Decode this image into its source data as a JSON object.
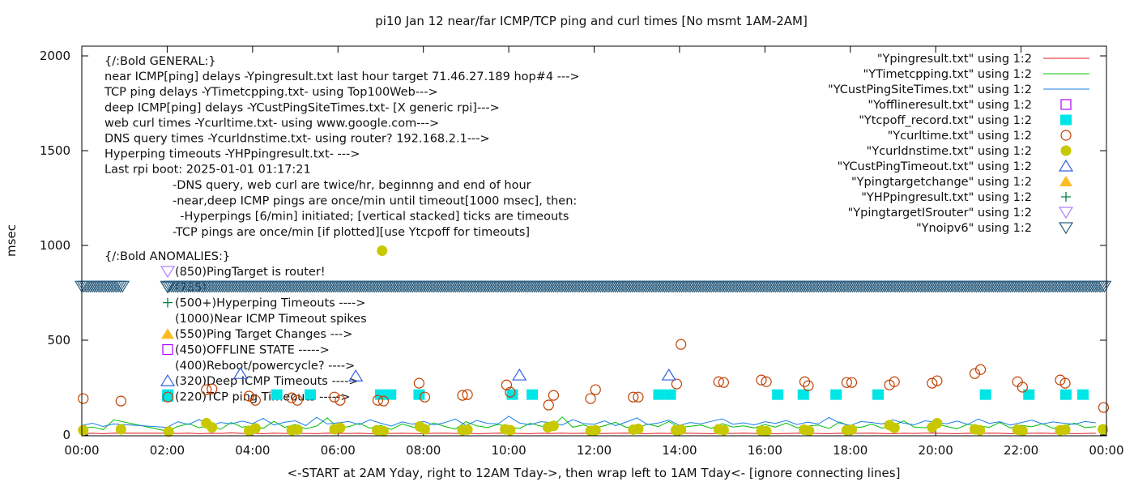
{
  "chart_data": {
    "type": "line",
    "title": "pi10 Jan 12  near/far ICMP/TCP ping and curl times [No msmt 1AM-2AM]",
    "xlabel": "<-START at 2AM Yday, right to 12AM Tday->, then wrap left to 1AM Tday<- [ignore connecting lines]",
    "ylabel": "msec",
    "xlim": [
      "00:00",
      "24:00"
    ],
    "ylim": [
      0,
      2040
    ],
    "x_ticks": [
      "00:00",
      "02:00",
      "04:00",
      "06:00",
      "08:00",
      "10:00",
      "12:00",
      "14:00",
      "16:00",
      "18:00",
      "20:00",
      "22:00",
      "00:00"
    ],
    "y_ticks": [
      0,
      500,
      1000,
      1500,
      2000
    ],
    "grid": false,
    "legend_position": "top-right",
    "series": [
      {
        "name": "\"Ypingresult.txt\" using 1:2",
        "kind": "line",
        "color": "#e41a1c",
        "x_start": "00:00",
        "step_minutes": 15,
        "values": [
          8,
          9,
          7,
          10,
          null,
          null,
          null,
          null,
          9,
          8,
          10,
          7,
          9,
          8,
          11,
          8,
          9,
          7,
          10,
          8,
          9,
          8,
          7,
          10,
          9,
          8,
          9,
          7,
          10,
          8,
          9,
          8,
          7,
          9,
          10,
          8,
          9,
          7,
          8,
          10,
          9,
          8,
          7,
          9,
          8,
          10,
          8,
          9,
          7,
          8,
          9,
          10,
          8,
          7,
          9,
          8,
          10,
          9,
          8,
          7,
          9,
          8,
          10,
          8,
          9,
          7,
          8,
          9,
          10,
          8,
          7,
          9,
          8,
          9,
          10,
          8,
          7,
          9,
          8,
          10,
          9,
          8,
          7,
          9,
          8,
          10,
          9,
          7,
          8,
          9,
          10,
          8,
          9,
          7,
          8,
          9
        ]
      },
      {
        "name": "\"YTimetcpping.txt\" using 1:2",
        "kind": "line",
        "color": "#00c000",
        "x_start": "00:00",
        "step_minutes": 15,
        "values": [
          35,
          42,
          28,
          80,
          null,
          null,
          null,
          null,
          20,
          45,
          60,
          38,
          52,
          30,
          66,
          41,
          48,
          35,
          72,
          40,
          55,
          33,
          47,
          90,
          38,
          44,
          61,
          36,
          50,
          29,
          58,
          42,
          37,
          64,
          45,
          31,
          70,
          48,
          39,
          56,
          43,
          34,
          62,
          47,
          38,
          95,
          41,
          53,
          36,
          49,
          67,
          40,
          33,
          58,
          44,
          71,
          39,
          46,
          52,
          35,
          60,
          42,
          48,
          37,
          55,
          41,
          63,
          38,
          47,
          52,
          34,
          69,
          45,
          40,
          57,
          36,
          49,
          74,
          42,
          38,
          61,
          45,
          33,
          56,
          48,
          40,
          66,
          37,
          51,
          43,
          59,
          35,
          47,
          62,
          39,
          44
        ]
      },
      {
        "name": "\"YCustPingSiteTimes.txt\" using 1:2",
        "kind": "line",
        "color": "#1a7fe6",
        "x_start": "00:00",
        "step_minutes": 15,
        "values": [
          50,
          62,
          45,
          58,
          null,
          null,
          null,
          null,
          40,
          70,
          55,
          82,
          48,
          66,
          59,
          73,
          60,
          88,
          52,
          67,
          75,
          49,
          93,
          58,
          64,
          71,
          55,
          80,
          62,
          47,
          69,
          57,
          72,
          53,
          65,
          84,
          50,
          77,
          61,
          58,
          99,
          63,
          54,
          70,
          66,
          52,
          81,
          60,
          57,
          74,
          49,
          68,
          90,
          55,
          63,
          78,
          51,
          66,
          59,
          72,
          85,
          57,
          64,
          53,
          70,
          61,
          76,
          55,
          68,
          58,
          92,
          63,
          50,
          71,
          66,
          58,
          80,
          62,
          54,
          75,
          67,
          59,
          73,
          56,
          84,
          61,
          70,
          52,
          65,
          78,
          58,
          69,
          62,
          57,
          71,
          64
        ]
      },
      {
        "name": "\"Yofflineresult.txt\" using 1:2",
        "kind": "open-square",
        "color": "#b000ff",
        "points": []
      },
      {
        "name": "\"Ytcpoff_record.txt\" using 1:2",
        "kind": "filled-square",
        "color": "#00e5e5",
        "points": [
          [
            "02:01",
            213
          ],
          [
            "04:34",
            213
          ],
          [
            "05:21",
            213
          ],
          [
            "07:00",
            213
          ],
          [
            "07:14",
            213
          ],
          [
            "07:54",
            213
          ],
          [
            "10:05",
            213
          ],
          [
            "10:33",
            213
          ],
          [
            "13:31",
            213
          ],
          [
            "13:47",
            213
          ],
          [
            "16:18",
            213
          ],
          [
            "16:54",
            213
          ],
          [
            "17:40",
            213
          ],
          [
            "18:39",
            213
          ],
          [
            "21:10",
            213
          ],
          [
            "22:11",
            213
          ],
          [
            "23:03",
            213
          ],
          [
            "23:27",
            213
          ]
        ]
      },
      {
        "name": "\"Ycurltime.txt\" using 1:2",
        "kind": "open-circle",
        "color": "#c04000",
        "points": [
          [
            "00:02",
            192
          ],
          [
            "00:55",
            179
          ],
          [
            "02:01",
            200
          ],
          [
            "02:55",
            239
          ],
          [
            "03:03",
            243
          ],
          [
            "03:55",
            205
          ],
          [
            "04:04",
            183
          ],
          [
            "04:55",
            196
          ],
          [
            "05:03",
            183
          ],
          [
            "05:55",
            200
          ],
          [
            "06:03",
            183
          ],
          [
            "06:56",
            183
          ],
          [
            "07:04",
            179
          ],
          [
            "07:54",
            273
          ],
          [
            "08:02",
            200
          ],
          [
            "08:55",
            209
          ],
          [
            "09:02",
            213
          ],
          [
            "09:57",
            264
          ],
          [
            "10:02",
            226
          ],
          [
            "10:56",
            158
          ],
          [
            "11:03",
            209
          ],
          [
            "11:55",
            192
          ],
          [
            "12:02",
            239
          ],
          [
            "12:55",
            200
          ],
          [
            "13:02",
            200
          ],
          [
            "13:56",
            269
          ],
          [
            "14:02",
            478
          ],
          [
            "14:55",
            281
          ],
          [
            "15:02",
            277
          ],
          [
            "15:55",
            290
          ],
          [
            "16:02",
            281
          ],
          [
            "16:56",
            281
          ],
          [
            "17:01",
            260
          ],
          [
            "17:55",
            277
          ],
          [
            "18:02",
            277
          ],
          [
            "18:55",
            264
          ],
          [
            "19:02",
            281
          ],
          [
            "19:55",
            273
          ],
          [
            "20:02",
            286
          ],
          [
            "20:55",
            324
          ],
          [
            "21:03",
            345
          ],
          [
            "21:55",
            281
          ],
          [
            "22:02",
            252
          ],
          [
            "22:55",
            290
          ],
          [
            "23:02",
            273
          ],
          [
            "23:56",
            145
          ]
        ]
      },
      {
        "name": "\"Ycurldnstime.txt\" using 1:2",
        "kind": "filled-circle",
        "color": "#c8c800",
        "points": [
          [
            "00:02",
            25
          ],
          [
            "00:55",
            30
          ],
          [
            "02:02",
            18
          ],
          [
            "02:55",
            62
          ],
          [
            "03:03",
            40
          ],
          [
            "03:55",
            22
          ],
          [
            "04:04",
            35
          ],
          [
            "04:55",
            25
          ],
          [
            "05:03",
            28
          ],
          [
            "05:55",
            30
          ],
          [
            "06:03",
            38
          ],
          [
            "06:55",
            25
          ],
          [
            "07:02",
            972
          ],
          [
            "07:04",
            20
          ],
          [
            "07:55",
            45
          ],
          [
            "08:02",
            30
          ],
          [
            "08:55",
            25
          ],
          [
            "09:02",
            28
          ],
          [
            "09:55",
            30
          ],
          [
            "10:02",
            25
          ],
          [
            "10:55",
            40
          ],
          [
            "11:03",
            48
          ],
          [
            "11:55",
            22
          ],
          [
            "12:02",
            25
          ],
          [
            "12:55",
            28
          ],
          [
            "13:02",
            32
          ],
          [
            "13:55",
            25
          ],
          [
            "14:02",
            28
          ],
          [
            "14:55",
            30
          ],
          [
            "15:02",
            25
          ],
          [
            "15:55",
            22
          ],
          [
            "16:02",
            20
          ],
          [
            "16:55",
            28
          ],
          [
            "17:02",
            22
          ],
          [
            "17:55",
            25
          ],
          [
            "18:02",
            28
          ],
          [
            "18:55",
            52
          ],
          [
            "19:02",
            38
          ],
          [
            "19:55",
            40
          ],
          [
            "20:02",
            62
          ],
          [
            "20:55",
            30
          ],
          [
            "21:02",
            25
          ],
          [
            "21:55",
            28
          ],
          [
            "22:02",
            22
          ],
          [
            "22:55",
            25
          ],
          [
            "23:02",
            28
          ],
          [
            "23:55",
            30
          ]
        ]
      },
      {
        "name": "\"YCustPingTimeout.txt\" using 1:2",
        "kind": "open-triangle",
        "color": "#3060e0",
        "points": [
          [
            "03:43",
            324
          ],
          [
            "06:25",
            311
          ],
          [
            "10:15",
            316
          ],
          [
            "13:45",
            316
          ]
        ]
      },
      {
        "name": "\"Ypingtargetchange\" using 1:2",
        "kind": "filled-triangle",
        "color": "#ffbb22",
        "points": []
      },
      {
        "name": "\"YHPpingresult.txt\" using 1:2",
        "kind": "plus",
        "color": "#008040",
        "points": []
      },
      {
        "name": "\"YpingtargetISrouter\" using 1:2",
        "kind": "open-down-triangle",
        "color": "#b080ff",
        "points": []
      },
      {
        "name": "\"Ynoipv6\" using 1:2",
        "kind": "open-down-triangle",
        "color": "#2f5f80",
        "value": 785,
        "every_minutes": 1,
        "ranges": [
          [
            "00:00",
            "01:00"
          ],
          [
            "02:00",
            "24:00"
          ]
        ]
      }
    ],
    "annotations": {
      "general": [
        "{/:Bold GENERAL:}",
        "near ICMP[ping] delays -Ypingresult.txt last hour target 71.46.27.189 hop#4 --->",
        "TCP ping delays -YTimetcpping.txt- using Top100Web--->",
        "deep ICMP[ping] delays -YCustPingSiteTimes.txt- [X generic rpi]--->",
        "web curl times -Ycurltime.txt- using www.google.com--->",
        "DNS query times -Ycurldnstime.txt- using router? 192.168.2.1--->",
        "Hyperping timeouts -YHPpingresult.txt- --->",
        "Last rpi boot: 2025-01-01 01:17:21"
      ],
      "notes": [
        "-DNS query, web curl are twice/hr, beginnng and end of hour",
        "-near,deep ICMP pings are once/min until timeout[1000 msec], then:",
        "  -Hyperpings [6/min] initiated; [vertical stacked] ticks are timeouts",
        "-TCP pings are once/min [if plotted][use Ytcpoff for timeouts]"
      ],
      "anomalies_title": "{/:Bold ANOMALIES:}",
      "anomalies": [
        {
          "marker": "open-down-triangle",
          "color": "#b080ff",
          "text": "(850)PingTarget is router!"
        },
        {
          "marker": "open-down-triangle",
          "color": "#2f5f80",
          "text": "(785)"
        },
        {
          "marker": "plus",
          "color": "#008040",
          "text": "(500+)Hyperping Timeouts ---->"
        },
        {
          "marker": "",
          "color": "",
          "text": "(1000)Near ICMP Timeout spikes"
        },
        {
          "marker": "filled-triangle",
          "color": "#ffbb22",
          "text": "(550)Ping Target Changes --->"
        },
        {
          "marker": "open-square",
          "color": "#b000ff",
          "text": "(450)OFFLINE STATE ----->"
        },
        {
          "marker": "",
          "color": "",
          "text": "(400)Reboot/powercycle? ---->"
        },
        {
          "marker": "open-triangle",
          "color": "#3060e0",
          "text": "(320)Deep ICMP Timeouts ---->"
        },
        {
          "marker": "filled-square",
          "color": "#00e5e5",
          "text": "(220)TCP ping Timeouts ----->"
        }
      ]
    }
  }
}
